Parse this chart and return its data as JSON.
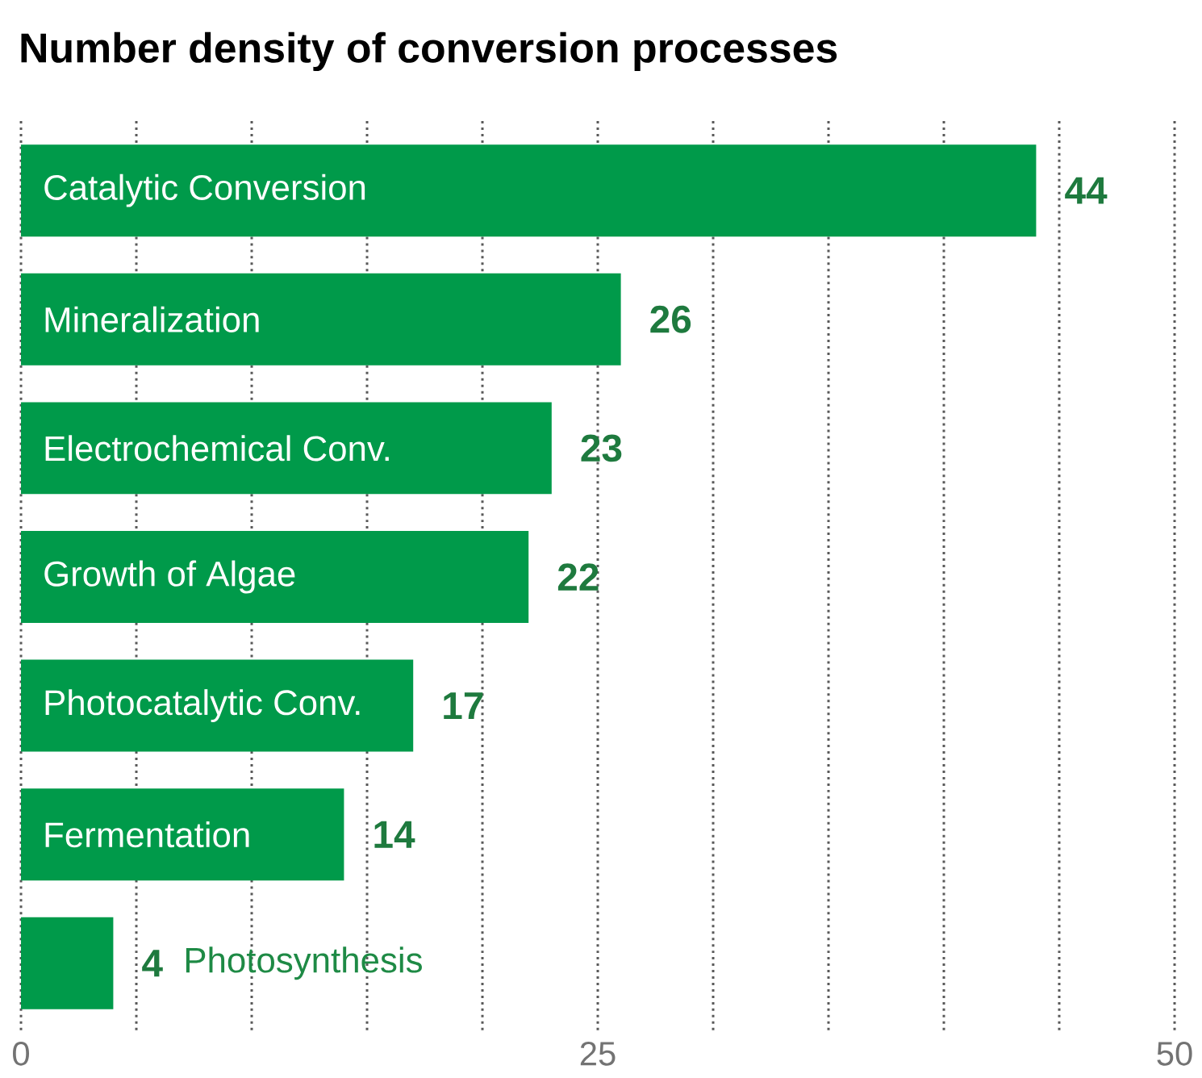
{
  "chart_data": {
    "type": "bar",
    "orientation": "horizontal",
    "title": "Number density of conversion processes",
    "categories": [
      "Catalytic Conversion",
      "Mineralization",
      "Electrochemical Conv.",
      "Growth of Algae",
      "Photocatalytic Conv.",
      "Fermentation",
      "Photosynthesis"
    ],
    "values": [
      44,
      26,
      23,
      22,
      17,
      14,
      4
    ],
    "color": "#009a4a",
    "xlim": [
      0,
      50
    ],
    "xticks": [
      0,
      {
        "value": 5,
        "label": null
      },
      {
        "value": 10,
        "label": null
      },
      {
        "value": 15,
        "label": null
      },
      {
        "value": 20,
        "label": null
      },
      25,
      {
        "value": 30,
        "label": null
      },
      {
        "value": 35,
        "label": null
      },
      {
        "value": 40,
        "label": null
      },
      {
        "value": 45,
        "label": null
      },
      50
    ],
    "grid": "x",
    "data_labels": true,
    "tick_labels": "x"
  }
}
